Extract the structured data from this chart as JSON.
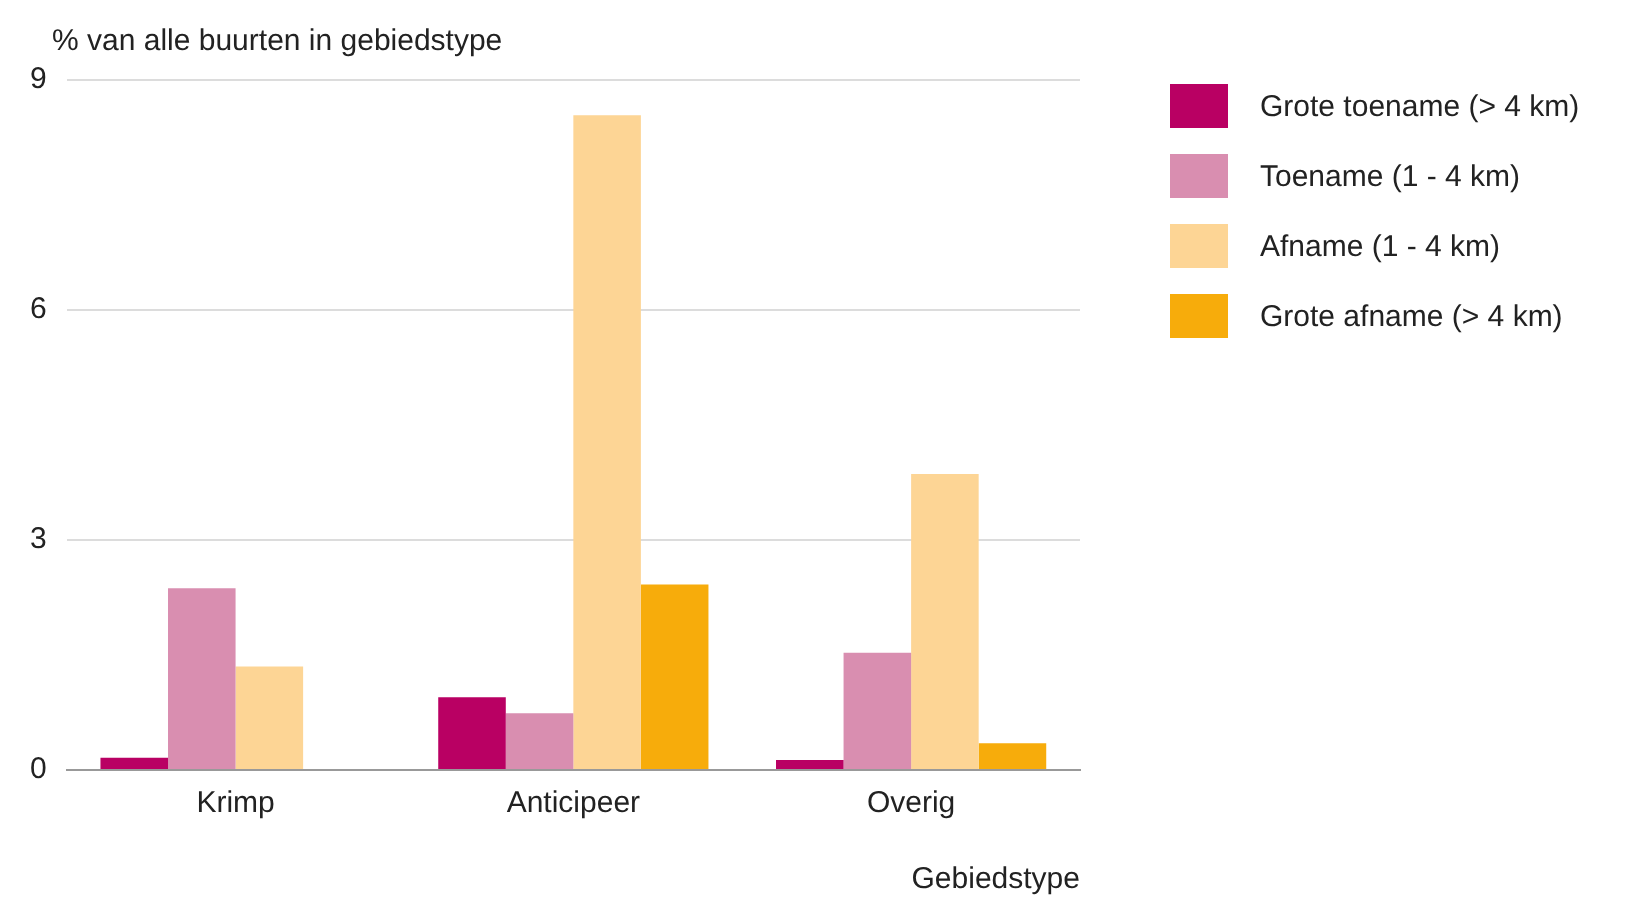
{
  "chart_data": {
    "type": "bar",
    "ylabel": "% van alle buurten in gebiedstype",
    "xlabel": "Gebiedstype",
    "categories": [
      "Krimp",
      "Anticipeer",
      "Overig"
    ],
    "series": [
      {
        "name": "Grote toename (> 4 km)",
        "color": "#b90063",
        "values": [
          0.16,
          0.95,
          0.13
        ]
      },
      {
        "name": "Toename (1 - 4 km)",
        "color": "#d98eb0",
        "values": [
          2.37,
          0.74,
          1.53
        ]
      },
      {
        "name": "Afname (1 - 4 km)",
        "color": "#fdd595",
        "values": [
          1.35,
          8.54,
          3.86
        ]
      },
      {
        "name": "Grote afname (> 4 km)",
        "color": "#f7ac0b",
        "values": [
          0,
          2.42,
          0.35
        ]
      }
    ],
    "ylim": [
      0,
      9
    ],
    "yticks": [
      0,
      3,
      6,
      9
    ],
    "grid": "y",
    "legend": "right"
  }
}
